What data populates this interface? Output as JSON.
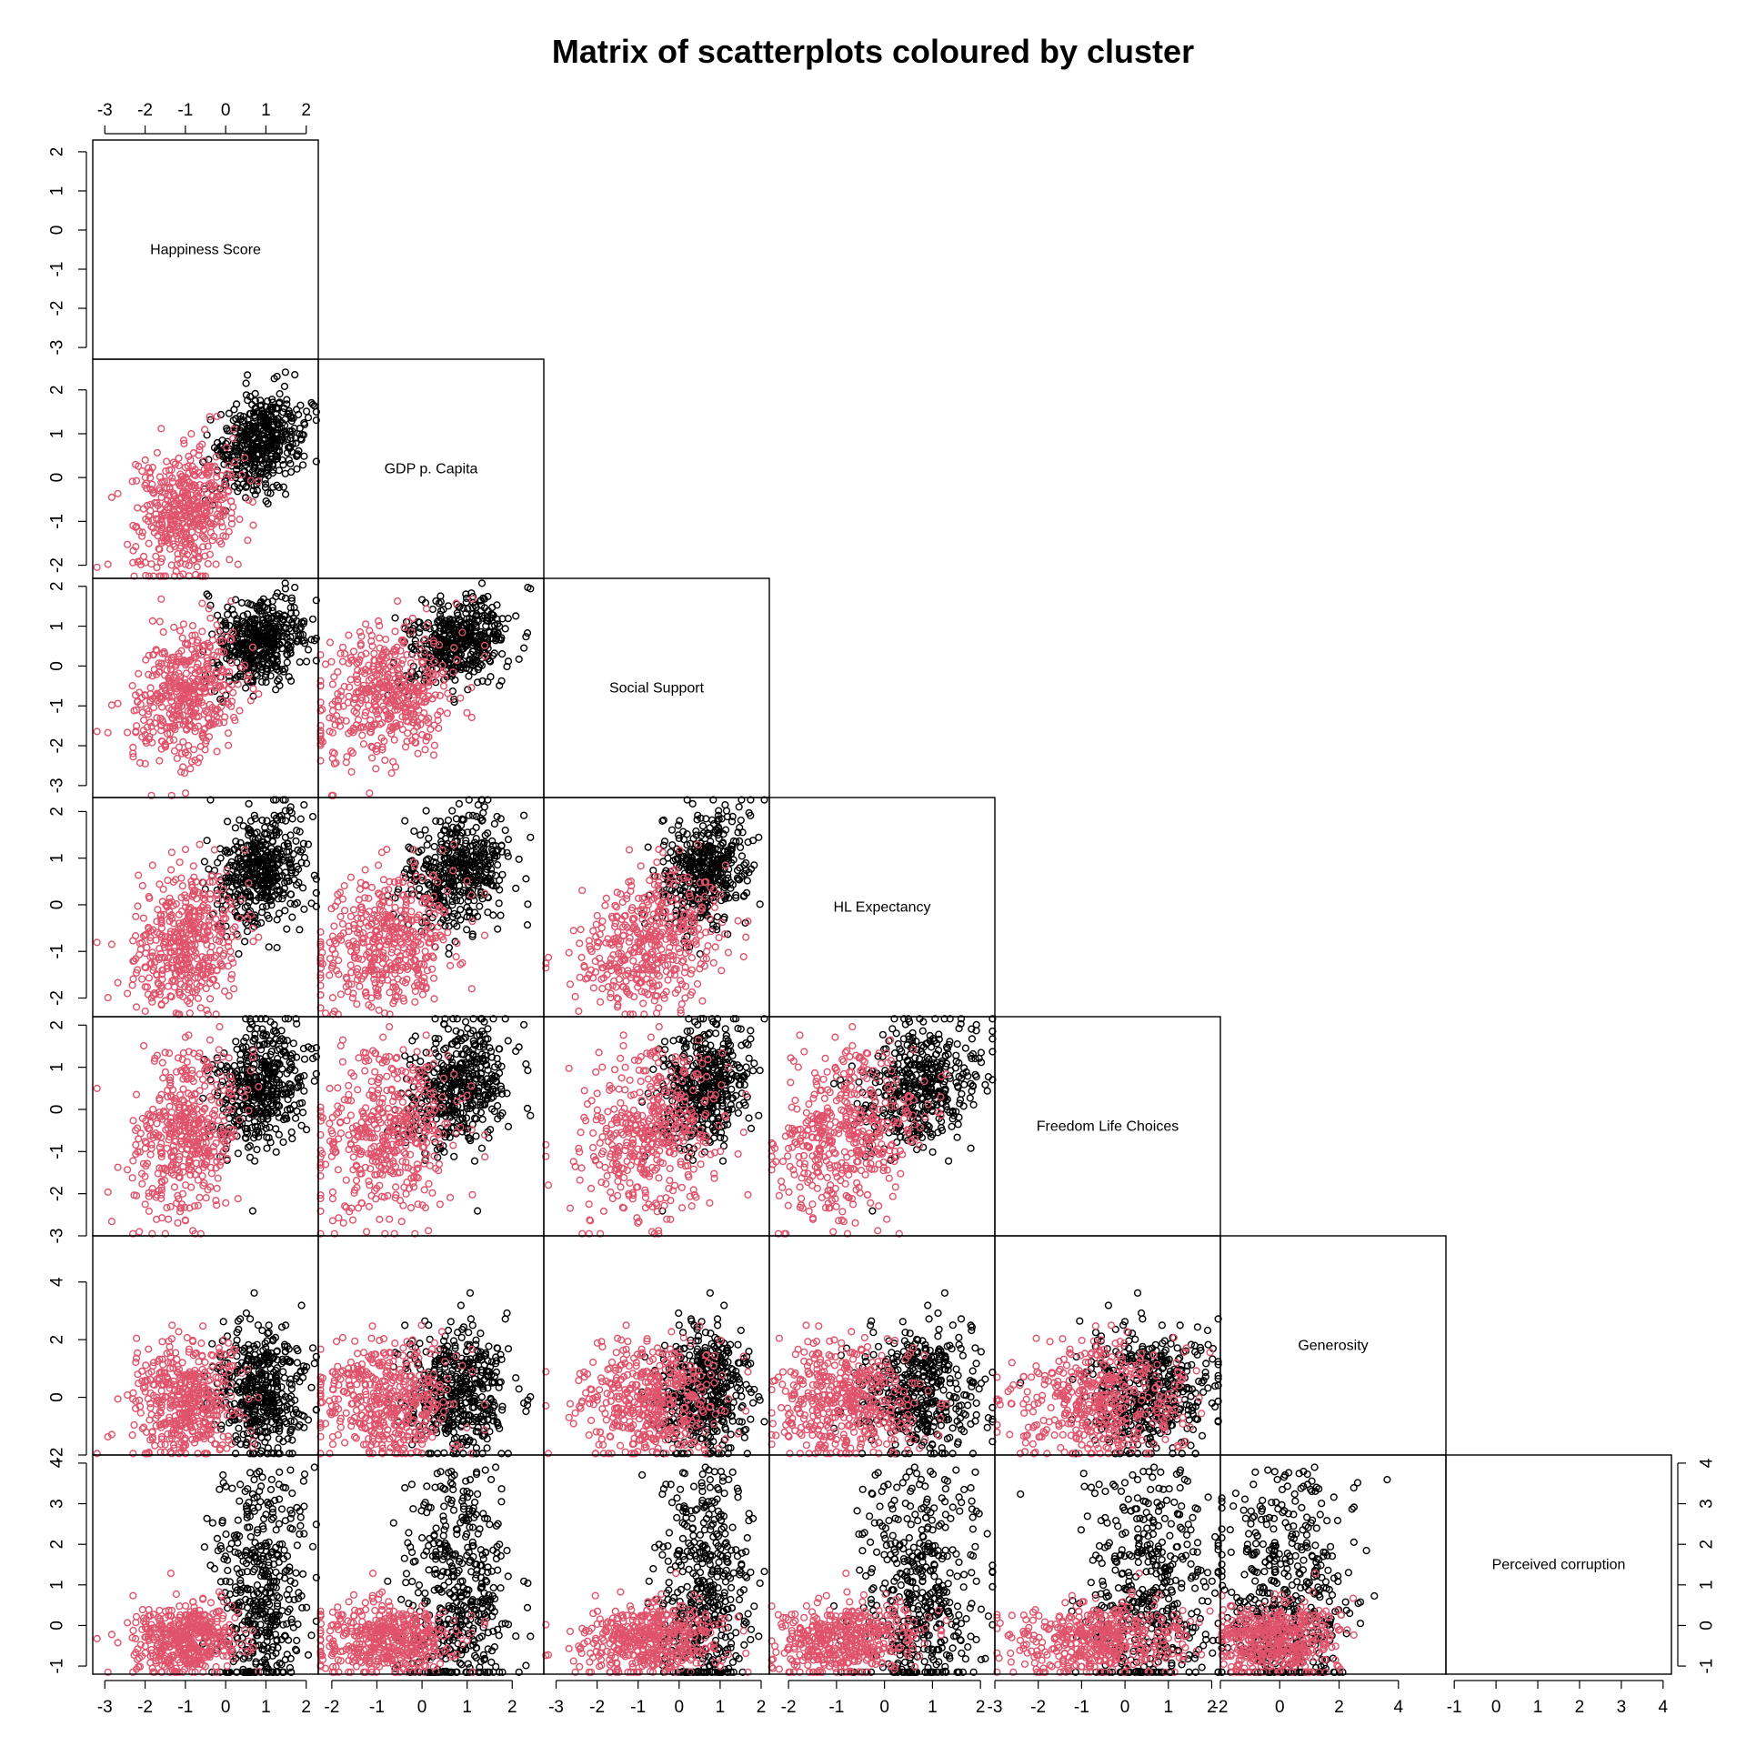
{
  "title": "Matrix of scatterplots coloured by cluster",
  "colors": {
    "cluster_1": "#000000",
    "cluster_2": "#df536b",
    "frame": "#000000",
    "background": "#ffffff"
  },
  "chart_data": {
    "type": "scatter",
    "layout": "lower-triangular scatterplot matrix",
    "title": "Matrix of scatterplots coloured by cluster",
    "marker": "open circle",
    "clusters": [
      {
        "id": 1,
        "color": "#000000"
      },
      {
        "id": 2,
        "color": "#df536b"
      }
    ],
    "variables": [
      {
        "name": "Happiness Score",
        "range": [
          -3.3,
          2.3
        ],
        "ticks": [
          -3,
          -2,
          -1,
          0,
          1,
          2
        ]
      },
      {
        "name": "GDP p. Capita",
        "range": [
          -2.3,
          2.7
        ],
        "ticks": [
          -2,
          -1,
          0,
          1,
          2
        ]
      },
      {
        "name": "Social Support",
        "range": [
          -3.3,
          2.2
        ],
        "ticks": [
          -3,
          -2,
          -1,
          0,
          1,
          2
        ]
      },
      {
        "name": "HL Expectancy",
        "range": [
          -2.4,
          2.3
        ],
        "ticks": [
          -2,
          -1,
          0,
          1,
          2
        ]
      },
      {
        "name": "Freedom Life Choices",
        "range": [
          -3.0,
          2.2
        ],
        "ticks": [
          -3,
          -2,
          -1,
          0,
          1,
          2
        ]
      },
      {
        "name": "Generosity",
        "range": [
          -2.0,
          5.6
        ],
        "ticks": [
          -2,
          0,
          2,
          4
        ]
      },
      {
        "name": "Perceived corruption",
        "range": [
          -1.2,
          4.2
        ],
        "ticks": [
          -1,
          0,
          1,
          2,
          3,
          4
        ]
      }
    ],
    "top_axis": {
      "variable": "Happiness Score",
      "labels": [
        "-3",
        "-2",
        "-1",
        "0",
        "1",
        "2"
      ]
    },
    "bottom_axis_labels": [
      [
        "-3",
        "-2",
        "-1",
        "0",
        "1",
        "2"
      ],
      [
        "-2",
        "-1",
        "0",
        "1",
        "2"
      ],
      [
        "-3",
        "-2",
        "-1",
        "0",
        "1",
        "2"
      ],
      [
        "-2",
        "-1",
        "0",
        "1",
        "2"
      ],
      [
        "-3",
        "-2",
        "-1",
        "0",
        "1",
        "2"
      ],
      [
        "-2",
        "0",
        "2",
        "4"
      ],
      [
        "-1",
        "0",
        "1",
        "2",
        "3",
        "4"
      ]
    ],
    "left_axis_labels": [
      [
        "-3",
        "-2",
        "-1",
        "0",
        "1",
        "2"
      ],
      [
        "-2",
        "-1",
        "0",
        "1",
        "2"
      ],
      [
        "-3",
        "-2",
        "-1",
        "0",
        "1",
        "2"
      ],
      [
        "-2",
        "-1",
        "0",
        "1",
        "2"
      ],
      [
        "-3",
        "-2",
        "-1",
        "0",
        "1",
        "2"
      ],
      [
        "-2",
        "0",
        "2",
        "4"
      ],
      [
        "-1",
        "0",
        "1",
        "2",
        "3",
        "4"
      ]
    ],
    "right_axis": {
      "variable": "Perceived corruption",
      "labels": [
        "-1",
        "0",
        "1",
        "2",
        "3",
        "4"
      ]
    },
    "cluster_profiles": [
      {
        "cluster": 1,
        "color": "#000000",
        "means": [
          0.9,
          0.75,
          0.65,
          0.75,
          0.55,
          0.2,
          0.3
        ],
        "spread": [
          0.55,
          0.6,
          0.55,
          0.6,
          0.75,
          1.1,
          1.1
        ]
      },
      {
        "cluster": 2,
        "color": "#df536b",
        "means": [
          -0.9,
          -0.75,
          -0.7,
          -0.75,
          -0.55,
          -0.1,
          -0.35
        ],
        "spread": [
          0.65,
          0.75,
          0.85,
          0.7,
          0.95,
          1.0,
          0.45
        ]
      }
    ],
    "points_per_cluster": 450,
    "grid": false,
    "legend": "none"
  }
}
